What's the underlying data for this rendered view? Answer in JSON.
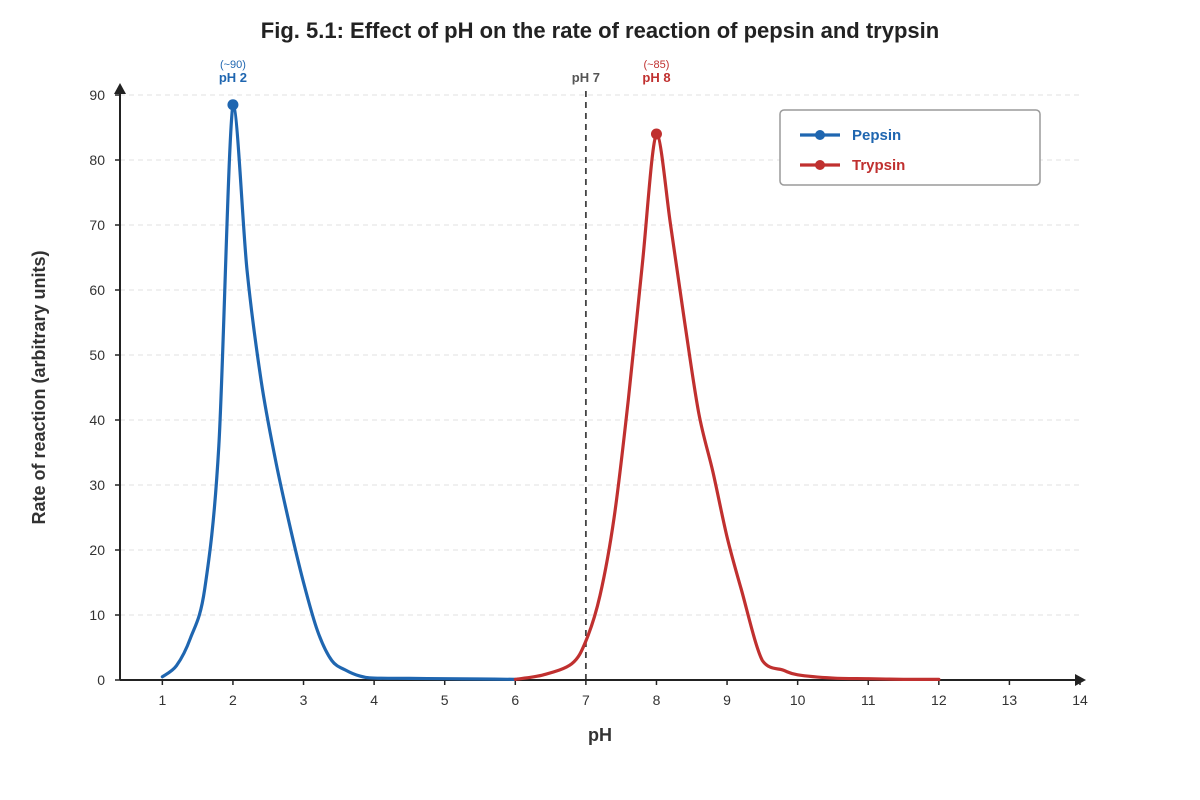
{
  "chart_data": {
    "type": "line",
    "title": "Fig. 5.1: Effect of pH on the rate of reaction of pepsin and trypsin",
    "xlabel": "pH",
    "ylabel": "Rate of reaction (arbitrary units)",
    "xlim": [
      0.4,
      14
    ],
    "ylim": [
      0,
      90
    ],
    "x_ticks": [
      1,
      2,
      3,
      4,
      5,
      6,
      7,
      8,
      9,
      10,
      11,
      12,
      13,
      14
    ],
    "y_ticks": [
      0,
      10,
      20,
      30,
      40,
      50,
      60,
      70,
      80,
      90
    ],
    "grid": "horizontal dashed",
    "legend_position": "top-right",
    "series": [
      {
        "name": "Pepsin",
        "color": "#1f66b0",
        "x": [
          1,
          1.2,
          1.4,
          1.6,
          1.8,
          2,
          2.2,
          2.4,
          2.6,
          2.8,
          3,
          3.2,
          3.4,
          3.6,
          3.8,
          4,
          4.5,
          5,
          5.5,
          6
        ],
        "y": [
          0.5,
          2.2,
          6.5,
          14,
          36,
          88.5,
          63,
          46,
          34,
          24,
          15,
          7.5,
          3,
          1.5,
          0.6,
          0.3,
          0.25,
          0.2,
          0.15,
          0.1
        ],
        "peak": {
          "x": 2,
          "y": 88.5
        }
      },
      {
        "name": "Trypsin",
        "color": "#c0302f",
        "x": [
          6,
          6.4,
          6.8,
          7,
          7.2,
          7.4,
          7.6,
          7.8,
          8,
          8.2,
          8.4,
          8.6,
          8.8,
          9,
          9.2,
          9.5,
          9.8,
          10,
          10.5,
          11,
          11.5,
          12
        ],
        "y": [
          0.1,
          0.8,
          2.5,
          6,
          13,
          25,
          43,
          64,
          84,
          70,
          55,
          41,
          32,
          22,
          14,
          3,
          1.5,
          0.8,
          0.3,
          0.2,
          0.1,
          0.1
        ],
        "peak": {
          "x": 8,
          "y": 84
        }
      }
    ],
    "reference_line": {
      "x": 7,
      "label": "pH 7",
      "style": "dashed",
      "color": "#444444"
    },
    "annotations": [
      {
        "series": "Pepsin",
        "x": 2,
        "top_text": "(~90)",
        "label": "pH 2",
        "color": "#1f66b0"
      },
      {
        "series": "Trypsin",
        "x": 8,
        "top_text": "(~85)",
        "label": "pH 8",
        "color": "#c0302f"
      }
    ]
  }
}
